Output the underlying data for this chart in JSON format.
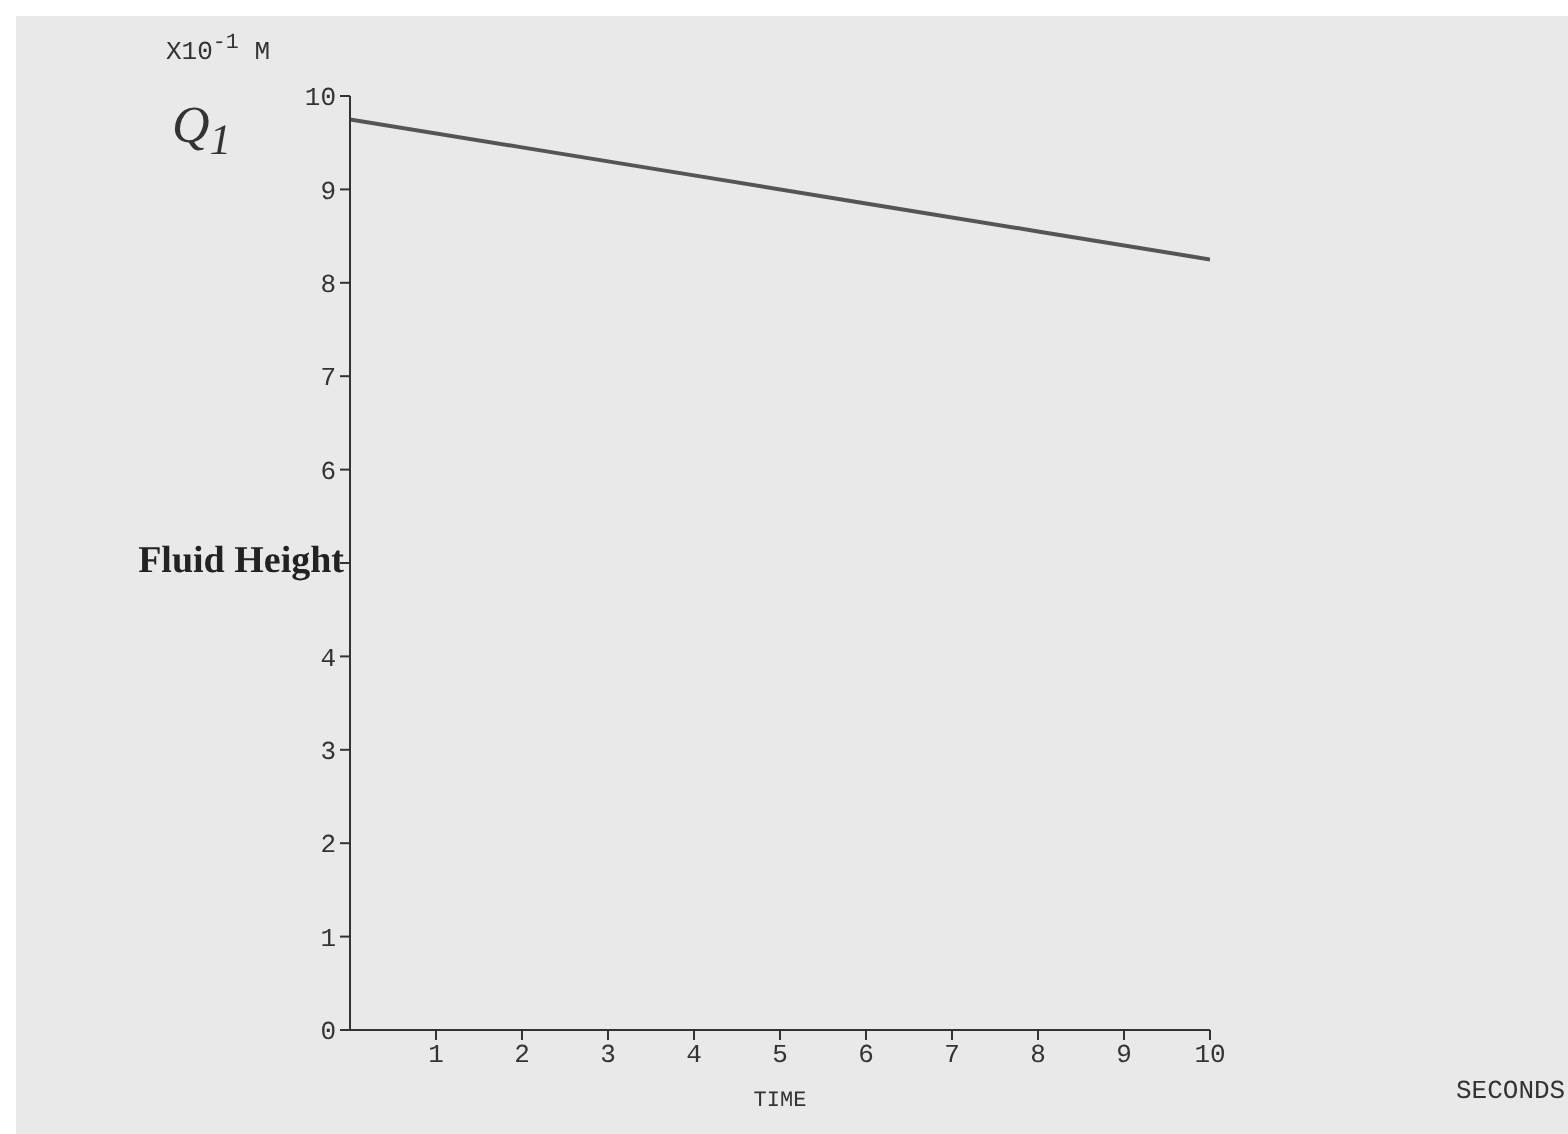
{
  "chart_data": {
    "type": "line",
    "xlabel": "TIME",
    "ylabel": "Fluid Height",
    "annotations": [
      "X10$^{-1}$ M",
      "Q$_{1}$",
      "SECONDS"
    ],
    "x": [
      0,
      2,
      4,
      6,
      8,
      10
    ],
    "series": [
      {
        "color": "#555555",
        "values": [
          9.75,
          9.45,
          9.15,
          8.85,
          8.55,
          8.25
        ]
      }
    ],
    "xlim": [
      0,
      10
    ],
    "xticks": [
      1,
      2,
      3,
      4,
      5,
      6,
      7,
      8,
      9,
      10
    ],
    "ylim": [
      0,
      10
    ],
    "yticks": [
      0,
      1,
      2,
      3,
      4,
      {
        "value": 5,
        "label": null
      },
      6,
      7,
      8,
      9,
      10
    ],
    "grid": false,
    "legend": false,
    "marker": "none",
    "line_style": "solid"
  }
}
